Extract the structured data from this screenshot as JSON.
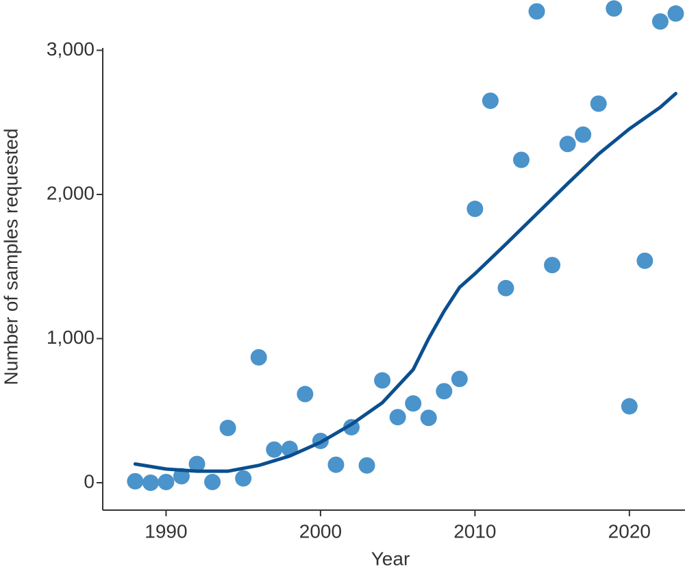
{
  "chart_data": {
    "type": "scatter",
    "xlabel": "Year",
    "ylabel": "Number of samples requested",
    "xlim": [
      1985.9,
      2023.6
    ],
    "ylim": [
      -190,
      3349
    ],
    "xticks": [
      1990,
      2000,
      2010,
      2020
    ],
    "yticks": [
      0,
      {
        "value": 1000,
        "label": "1,000"
      },
      {
        "value": 2000,
        "label": "2,000"
      },
      {
        "value": 3000,
        "label": "3,000"
      }
    ],
    "series": [
      {
        "type": "scatter",
        "color": "#4a93cb",
        "x": [
          1988,
          1989,
          1990,
          1991,
          1992,
          1993,
          1994,
          1995,
          1996,
          1997,
          1998,
          1999,
          2000,
          2001,
          2002,
          2003,
          2004,
          2005,
          2006,
          2007,
          2008,
          2009,
          2010,
          2011,
          2012,
          2013,
          2014,
          2015,
          2016,
          2017,
          2018,
          2019,
          2020,
          2021,
          2022,
          2023
        ],
        "values": [
          10,
          0,
          5,
          45,
          130,
          5,
          380,
          30,
          870,
          230,
          235,
          615,
          290,
          125,
          385,
          120,
          710,
          455,
          550,
          450,
          635,
          720,
          1900,
          2650,
          1350,
          2240,
          3270,
          1510,
          2350,
          2415,
          2630,
          3290,
          530,
          1540,
          3200,
          3255
        ]
      },
      {
        "type": "line",
        "color": "#0b4f8f",
        "x": [
          1988,
          1990,
          1992,
          1994,
          1996,
          1998,
          2000,
          2002,
          2004,
          2006,
          2007,
          2008,
          2009,
          2010,
          2012,
          2014,
          2016,
          2018,
          2020,
          2022,
          2023
        ],
        "values": [
          130,
          95,
          80,
          80,
          120,
          185,
          280,
          405,
          555,
          785,
          1000,
          1190,
          1355,
          1450,
          1655,
          1865,
          2075,
          2280,
          2455,
          2605,
          2700
        ]
      }
    ]
  }
}
